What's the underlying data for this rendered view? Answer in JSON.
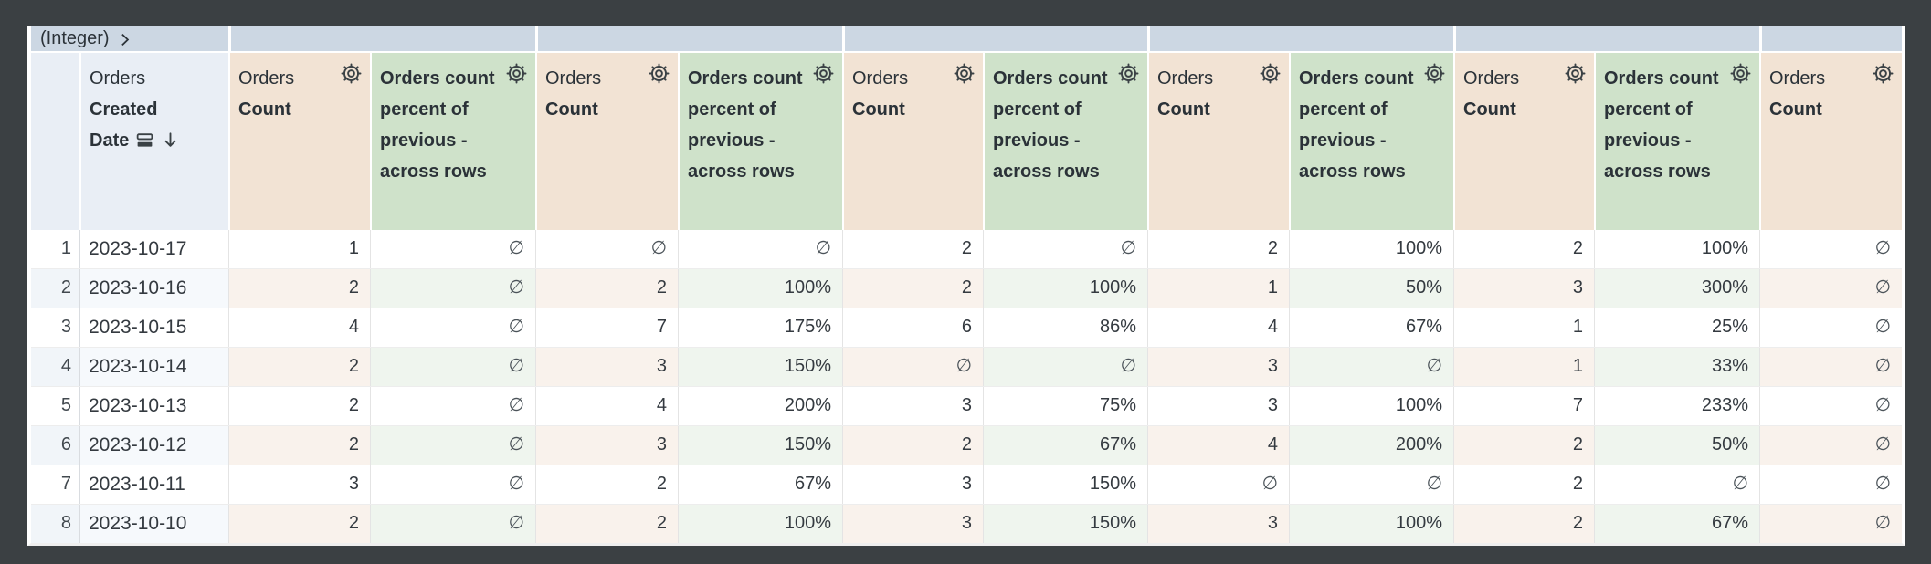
{
  "pivot": {
    "corner_label": "(Integer)",
    "group_values": [
      "",
      "",
      "",
      "",
      "",
      ""
    ]
  },
  "header": {
    "date_column": {
      "view": "Orders",
      "field": "Created Date",
      "sort": "descending"
    },
    "measure_columns": [
      {
        "kind": "count",
        "view": "Orders",
        "field": "Count"
      },
      {
        "kind": "calc",
        "label": "Orders count percent of previous - across rows"
      },
      {
        "kind": "count",
        "view": "Orders",
        "field": "Count"
      },
      {
        "kind": "calc",
        "label": "Orders count percent of previous - across rows"
      },
      {
        "kind": "count",
        "view": "Orders",
        "field": "Count"
      },
      {
        "kind": "calc",
        "label": "Orders count percent of previous - across rows"
      },
      {
        "kind": "count",
        "view": "Orders",
        "field": "Count"
      },
      {
        "kind": "calc",
        "label": "Orders count percent of previous - across rows"
      },
      {
        "kind": "count",
        "view": "Orders",
        "field": "Count"
      },
      {
        "kind": "calc",
        "label": "Orders count percent of previous - across rows"
      },
      {
        "kind": "count",
        "view": "Orders",
        "field": "Count"
      }
    ]
  },
  "null_symbol": "∅",
  "rows": [
    {
      "n": "1",
      "date": "2023-10-17",
      "values": [
        "1",
        "∅",
        "∅",
        "∅",
        "2",
        "∅",
        "2",
        "100%",
        "2",
        "100%",
        "∅"
      ]
    },
    {
      "n": "2",
      "date": "2023-10-16",
      "values": [
        "2",
        "∅",
        "2",
        "100%",
        "2",
        "100%",
        "1",
        "50%",
        "3",
        "300%",
        "∅"
      ]
    },
    {
      "n": "3",
      "date": "2023-10-15",
      "values": [
        "4",
        "∅",
        "7",
        "175%",
        "6",
        "86%",
        "4",
        "67%",
        "1",
        "25%",
        "∅"
      ]
    },
    {
      "n": "4",
      "date": "2023-10-14",
      "values": [
        "2",
        "∅",
        "3",
        "150%",
        "∅",
        "∅",
        "3",
        "∅",
        "1",
        "33%",
        "∅"
      ]
    },
    {
      "n": "5",
      "date": "2023-10-13",
      "values": [
        "2",
        "∅",
        "4",
        "200%",
        "3",
        "75%",
        "3",
        "100%",
        "7",
        "233%",
        "∅"
      ]
    },
    {
      "n": "6",
      "date": "2023-10-12",
      "values": [
        "2",
        "∅",
        "3",
        "150%",
        "2",
        "67%",
        "4",
        "200%",
        "2",
        "50%",
        "∅"
      ]
    },
    {
      "n": "7",
      "date": "2023-10-11",
      "values": [
        "3",
        "∅",
        "2",
        "67%",
        "3",
        "150%",
        "∅",
        "∅",
        "2",
        "∅",
        "∅"
      ]
    },
    {
      "n": "8",
      "date": "2023-10-10",
      "values": [
        "2",
        "∅",
        "2",
        "100%",
        "3",
        "150%",
        "3",
        "100%",
        "2",
        "67%",
        "∅"
      ]
    }
  ],
  "colors": {
    "bg": "#3b4043",
    "sep": "#ffffff",
    "pivot_bg": "#ccd7e3",
    "dim_bg": "#e9eef5",
    "count_bg": "#f2e3d4",
    "calc_bg": "#cfe2ca",
    "row_even_dim": "#f1f5f9",
    "row_even_date": "#f6f9fc",
    "row_even_count": "#f9f2ec",
    "row_even_calc": "#eff5ee",
    "header_text": "#2b3238",
    "data_text": "#343a40",
    "rownum_text": "#41484e",
    "null_text": "#4b5359",
    "icon": "#3a4145",
    "grid": "#e4e4e4",
    "grid_strong": "#d9dce0"
  }
}
